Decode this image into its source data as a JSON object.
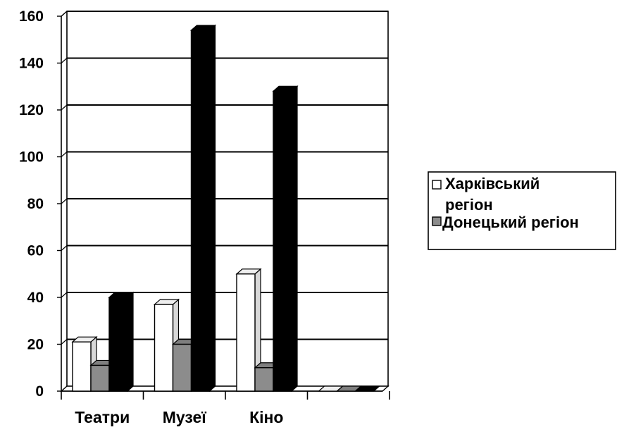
{
  "chart_data": {
    "type": "bar",
    "categories": [
      "Театри",
      "Музеї",
      "Кіно",
      ""
    ],
    "series": [
      {
        "name": "Харківський регіон",
        "values": [
          21,
          37,
          50,
          0
        ],
        "color": "#ffffff"
      },
      {
        "name": "Донецький регіон",
        "values": [
          11,
          20,
          10,
          0
        ],
        "color": "#8c8c8c"
      },
      {
        "name": "",
        "values": [
          40,
          154,
          128,
          0
        ],
        "color": "#000000"
      }
    ],
    "ylim": [
      0,
      160
    ],
    "yticks": [
      0,
      20,
      40,
      60,
      80,
      100,
      120,
      140,
      160
    ],
    "grid": true,
    "legend": "right",
    "legend_lines": [
      "Харківський",
      "регіон",
      "Донецький регіон"
    ]
  }
}
